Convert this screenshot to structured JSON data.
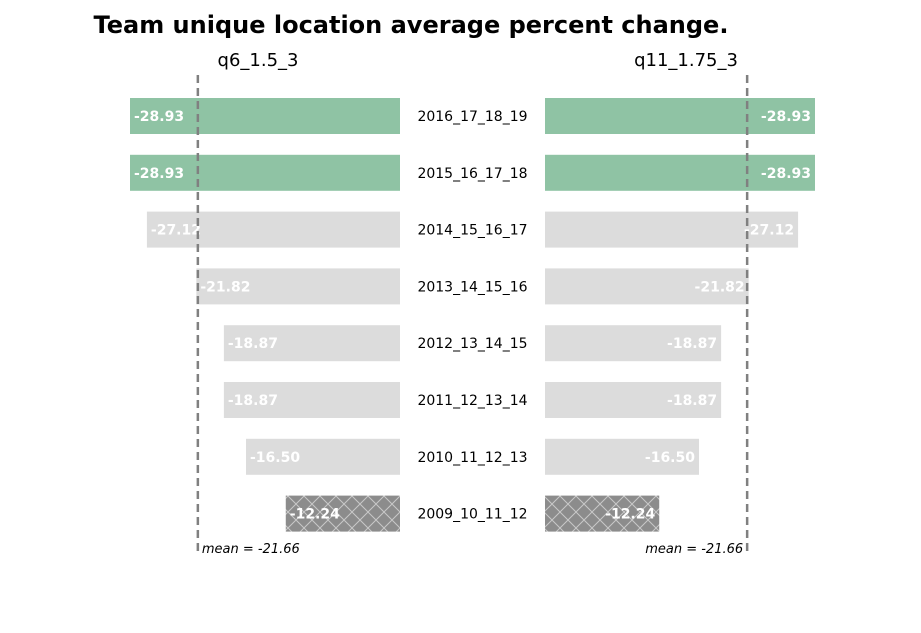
{
  "chart_data": {
    "type": "bar",
    "title": "Team unique location average percent change.",
    "categories": [
      "2016_17_18_19",
      "2015_16_17_18",
      "2014_15_16_17",
      "2013_14_15_16",
      "2012_13_14_15",
      "2011_12_13_14",
      "2010_11_12_13",
      "2009_10_11_12"
    ],
    "series": [
      {
        "name": "q6_1.5_3",
        "values": [
          -28.93,
          -28.93,
          -27.12,
          -21.82,
          -18.87,
          -18.87,
          -16.5,
          -12.24
        ],
        "value_labels": [
          "-28.93",
          "-28.93",
          "-27.12",
          "-21.82",
          "-18.87",
          "-18.87",
          "-16.50",
          "-12.24"
        ],
        "mean": -21.66,
        "mean_label": "mean = -21.66"
      },
      {
        "name": "q11_1.75_3",
        "values": [
          -28.93,
          -28.93,
          -27.12,
          -21.82,
          -18.87,
          -18.87,
          -16.5,
          -12.24
        ],
        "value_labels": [
          "-28.93",
          "-28.93",
          "-27.12",
          "-21.82",
          "-18.87",
          "-18.87",
          "-16.50",
          "-12.24"
        ],
        "mean": -21.66,
        "mean_label": "mean = -21.66"
      }
    ],
    "bar_styles": [
      "highlight",
      "highlight",
      "normal",
      "normal",
      "normal",
      "normal",
      "normal",
      "hatched"
    ],
    "xlim": [
      0,
      -28.93
    ],
    "grid": false,
    "legend": "none"
  },
  "colors": {
    "highlight": "#8fc3a4",
    "normal": "#dcdcdc",
    "hatched": "#8c8c8c",
    "mean_line": "#808080",
    "bar_text": "#ffffff"
  }
}
